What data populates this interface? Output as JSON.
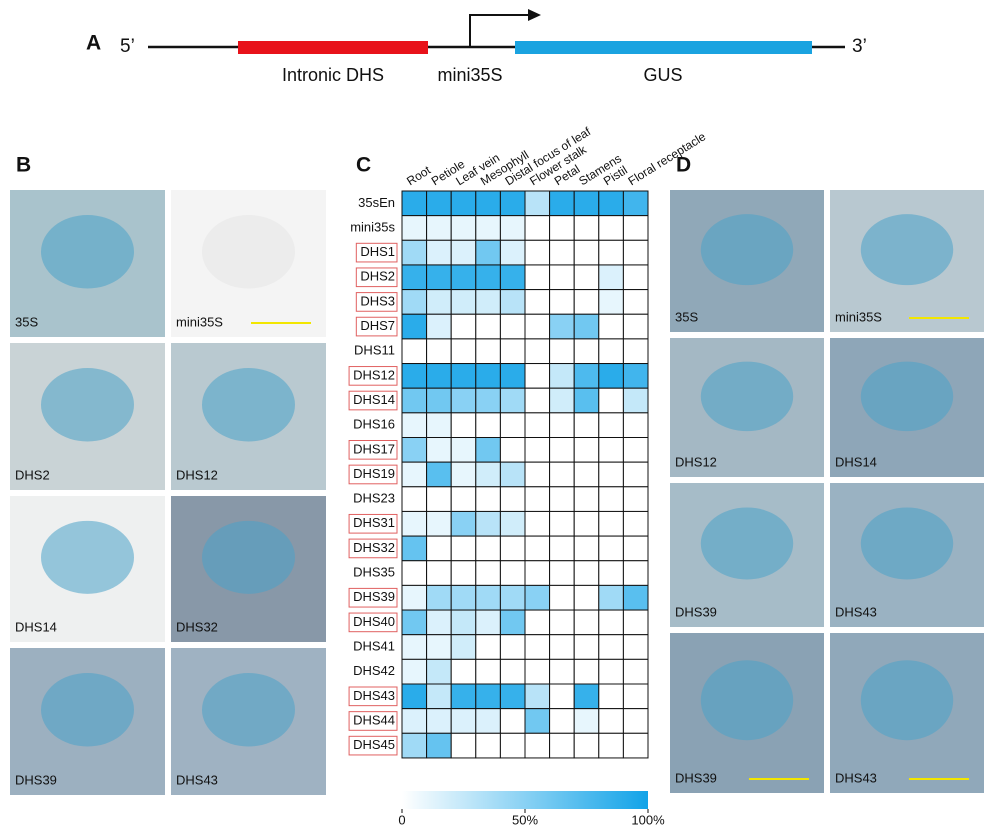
{
  "panel_a": {
    "label": "A",
    "five_prime": "5’",
    "three_prime": "3’",
    "elements": [
      "Intronic DHS",
      "mini35S",
      "GUS"
    ]
  },
  "panel_b": {
    "label": "B",
    "photos": [
      "35S",
      "mini35S",
      "DHS2",
      "DHS12",
      "DHS14",
      "DHS32",
      "DHS39",
      "DHS43"
    ]
  },
  "panel_c": {
    "label": "C",
    "columns": [
      "Root",
      "Petiole",
      "Leaf vein",
      "Mesophyll",
      "Distal focus of leaf",
      "Flower stalk",
      "Petal",
      "Stamens",
      "Pistil",
      "Floral receptacle"
    ],
    "scale": [
      0,
      100
    ],
    "colors": [
      "#ffffff",
      "#12a3e8"
    ],
    "ticks": [
      0,
      {
        "value": 50,
        "label": "50%"
      },
      {
        "value": 100,
        "label": "100%"
      }
    ],
    "rows": [
      {
        "name": "35sEn",
        "boxed": false,
        "values": [
          90,
          90,
          90,
          90,
          90,
          30,
          90,
          90,
          90,
          80
        ]
      },
      {
        "name": "mini35s",
        "boxed": false,
        "values": [
          10,
          10,
          10,
          10,
          10,
          0,
          0,
          0,
          0,
          0
        ]
      },
      {
        "name": "DHS1",
        "boxed": true,
        "values": [
          40,
          15,
          15,
          60,
          15,
          0,
          0,
          0,
          0,
          0
        ]
      },
      {
        "name": "DHS2",
        "boxed": true,
        "values": [
          85,
          85,
          85,
          85,
          85,
          0,
          0,
          0,
          15,
          0
        ]
      },
      {
        "name": "DHS3",
        "boxed": true,
        "values": [
          40,
          20,
          20,
          20,
          30,
          0,
          0,
          0,
          10,
          0
        ]
      },
      {
        "name": "DHS7",
        "boxed": true,
        "values": [
          90,
          15,
          0,
          0,
          0,
          0,
          50,
          60,
          0,
          0
        ]
      },
      {
        "name": "DHS11",
        "boxed": false,
        "values": [
          0,
          0,
          0,
          0,
          0,
          0,
          0,
          0,
          0,
          0
        ]
      },
      {
        "name": "DHS12",
        "boxed": true,
        "values": [
          90,
          90,
          90,
          90,
          90,
          0,
          25,
          75,
          90,
          80
        ]
      },
      {
        "name": "DHS14",
        "boxed": true,
        "values": [
          60,
          60,
          50,
          50,
          40,
          0,
          20,
          70,
          0,
          25
        ]
      },
      {
        "name": "DHS16",
        "boxed": false,
        "values": [
          10,
          10,
          0,
          0,
          0,
          0,
          0,
          0,
          0,
          0
        ]
      },
      {
        "name": "DHS17",
        "boxed": true,
        "values": [
          50,
          10,
          10,
          60,
          0,
          0,
          0,
          0,
          0,
          0
        ]
      },
      {
        "name": "DHS19",
        "boxed": true,
        "values": [
          10,
          70,
          10,
          20,
          30,
          0,
          0,
          0,
          0,
          0
        ]
      },
      {
        "name": "DHS23",
        "boxed": false,
        "values": [
          0,
          0,
          0,
          0,
          0,
          0,
          0,
          0,
          0,
          0
        ]
      },
      {
        "name": "DHS31",
        "boxed": true,
        "values": [
          10,
          10,
          50,
          30,
          20,
          0,
          0,
          0,
          0,
          0
        ]
      },
      {
        "name": "DHS32",
        "boxed": true,
        "values": [
          65,
          0,
          0,
          0,
          0,
          0,
          0,
          0,
          0,
          0
        ]
      },
      {
        "name": "DHS35",
        "boxed": false,
        "values": [
          0,
          0,
          0,
          0,
          0,
          0,
          0,
          0,
          0,
          0
        ]
      },
      {
        "name": "DHS39",
        "boxed": true,
        "values": [
          10,
          40,
          40,
          40,
          40,
          50,
          0,
          0,
          40,
          70
        ]
      },
      {
        "name": "DHS40",
        "boxed": true,
        "values": [
          60,
          15,
          25,
          15,
          60,
          0,
          0,
          0,
          0,
          0
        ]
      },
      {
        "name": "DHS41",
        "boxed": false,
        "values": [
          10,
          10,
          20,
          0,
          0,
          0,
          0,
          0,
          0,
          0
        ]
      },
      {
        "name": "DHS42",
        "boxed": false,
        "values": [
          10,
          25,
          0,
          0,
          0,
          0,
          0,
          0,
          0,
          0
        ]
      },
      {
        "name": "DHS43",
        "boxed": true,
        "values": [
          90,
          25,
          85,
          85,
          85,
          30,
          0,
          85,
          0,
          0
        ]
      },
      {
        "name": "DHS44",
        "boxed": true,
        "values": [
          15,
          15,
          15,
          15,
          0,
          60,
          0,
          10,
          0,
          0
        ]
      },
      {
        "name": "DHS45",
        "boxed": true,
        "values": [
          40,
          65,
          0,
          0,
          0,
          0,
          0,
          0,
          0,
          0
        ]
      }
    ]
  },
  "panel_d": {
    "label": "D",
    "photos": [
      "35S",
      "mini35S",
      "DHS12",
      "DHS14",
      "DHS39",
      "DHS43",
      "DHS39",
      "DHS43"
    ]
  }
}
